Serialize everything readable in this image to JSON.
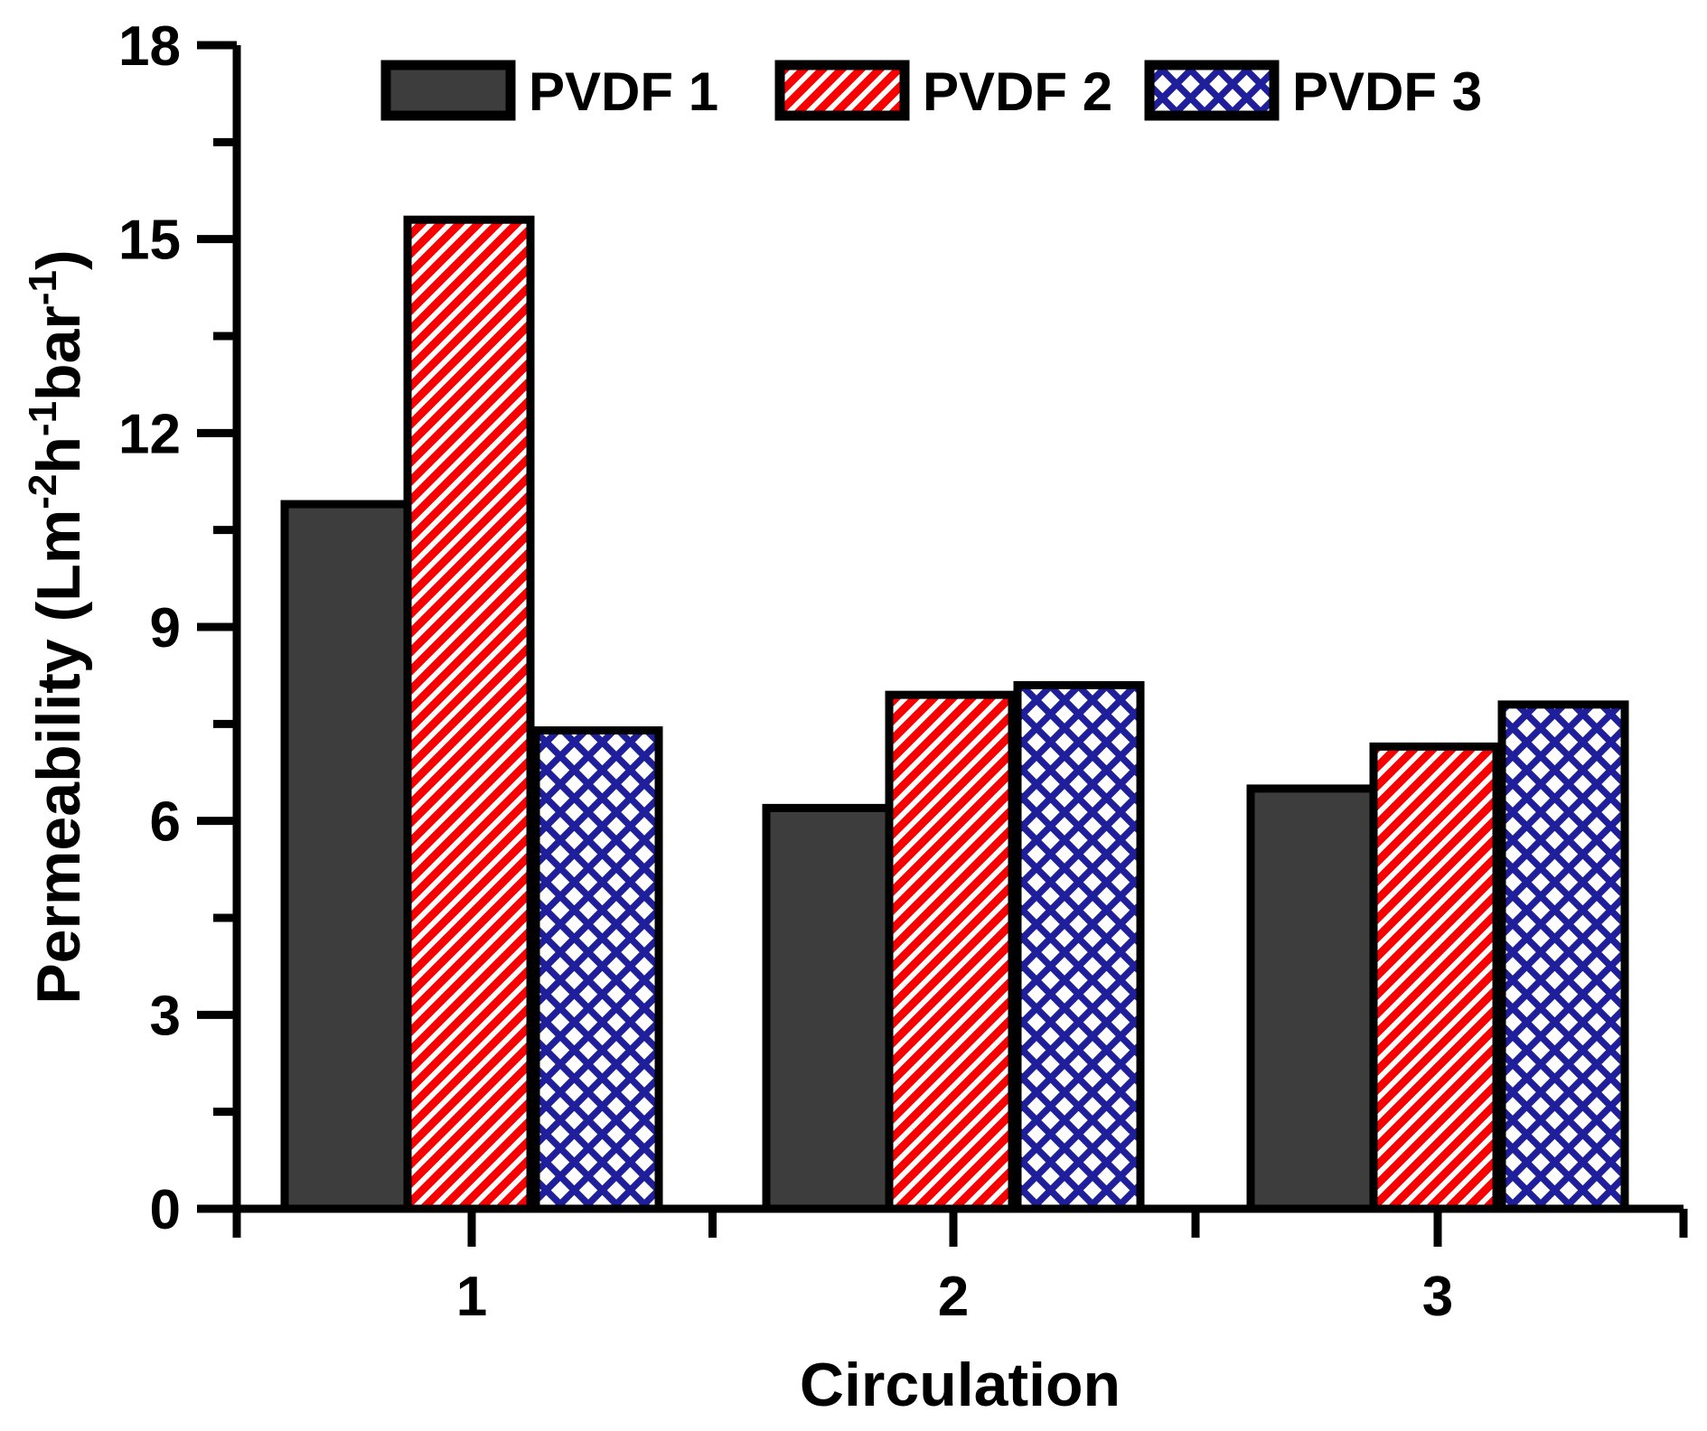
{
  "chart_data": {
    "type": "bar",
    "title": "",
    "xlabel": "Circulation",
    "ylabel": {
      "pre": "Permeability (Lm",
      "sup1": "-2",
      "mid1": "h",
      "sup2": "-1",
      "mid2": "bar",
      "sup3": "-1",
      "post": ")"
    },
    "categories": [
      "1",
      "2",
      "3"
    ],
    "series": [
      {
        "name": "PVDF 1",
        "values": [
          10.9,
          6.2,
          6.5
        ],
        "pattern": "solid",
        "color": "#3d3d3d"
      },
      {
        "name": "PVDF 2",
        "values": [
          15.3,
          7.95,
          7.15
        ],
        "pattern": "diagonal-hatch",
        "color": "#f80000"
      },
      {
        "name": "PVDF 3",
        "values": [
          7.4,
          8.1,
          7.8
        ],
        "pattern": "crosshatch",
        "color": "#1f1f9c"
      }
    ],
    "ylim": [
      0,
      18
    ],
    "yticks": [
      0,
      3,
      6,
      9,
      12,
      15,
      18
    ],
    "ytick_labels": [
      "0",
      "3",
      "6",
      "9",
      "12",
      "15",
      "18"
    ],
    "y_minor_ticks": [
      1.5,
      4.5,
      7.5,
      10.5,
      13.5,
      16.5
    ],
    "grid": false,
    "legend_position": "top",
    "axis_color": "#000000",
    "bar_border_color": "#000000",
    "background": "#ffffff"
  }
}
